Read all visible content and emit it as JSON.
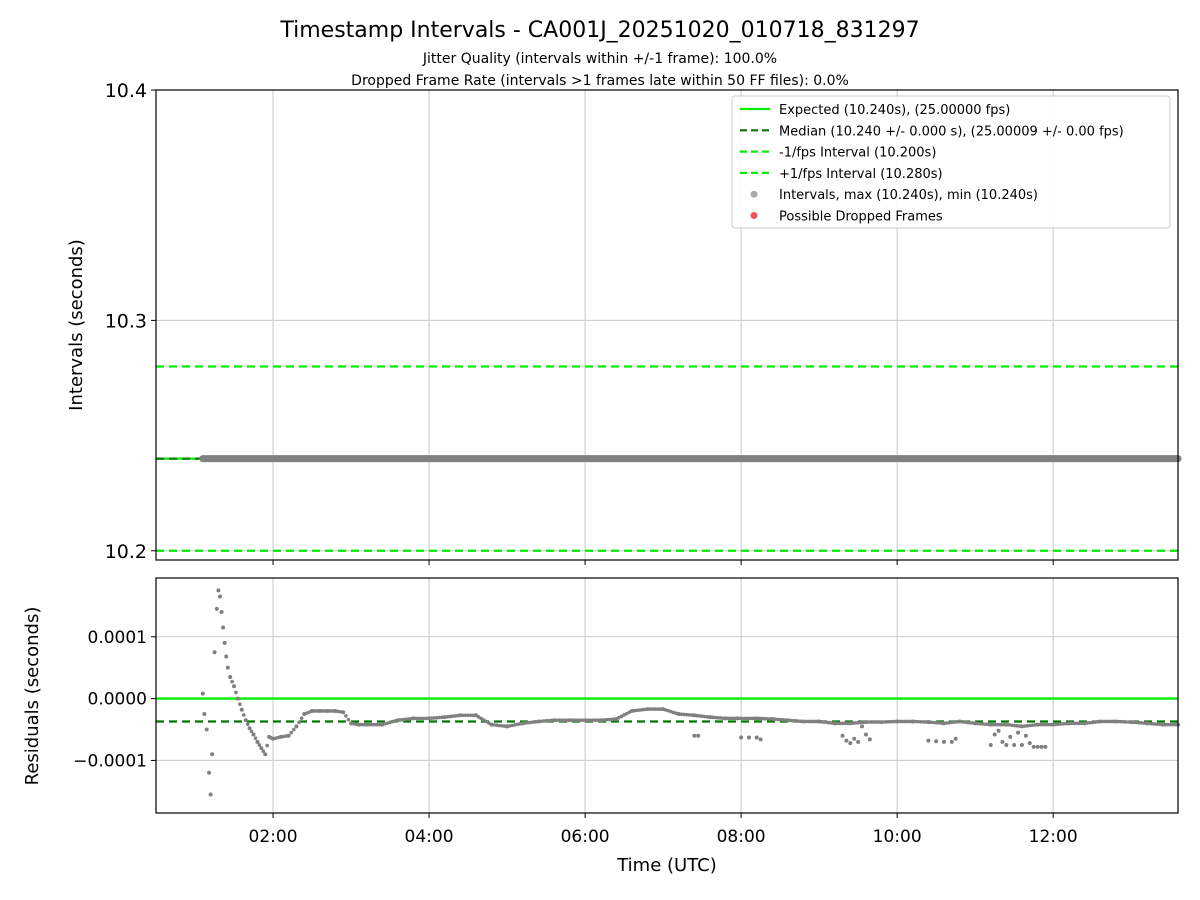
{
  "title": "Timestamp Intervals - CA001J_20251020_010718_831297",
  "subtitle_1": "Jitter Quality (intervals within +/-1 frame): 100.0%",
  "subtitle_2": "Dropped Frame Rate (intervals >1 frames late within 50 FF files): 0.0%",
  "colors": {
    "expected": "#00ee00",
    "median": "#007700",
    "fps_band": "#00ee00",
    "points": "#808080",
    "legend_points": "#aaaaaa",
    "dropped": "#ee5555",
    "grid": "#c8c8c8"
  },
  "chart_data": [
    {
      "type": "scatter",
      "name": "intervals",
      "xlabel": "",
      "ylabel": "Intervals (seconds)",
      "xlim_hours": [
        0.5,
        13.6
      ],
      "ylim": [
        10.196,
        10.4
      ],
      "yticks": [
        10.2,
        10.3,
        10.4
      ],
      "ytick_labels": [
        "10.2",
        "10.3",
        "10.4"
      ],
      "grid": true,
      "legend_position": "top-right",
      "reference_lines": {
        "expected": 10.24,
        "median": 10.24,
        "minus_1_fps": 10.2,
        "plus_1_fps": 10.28
      },
      "series": [
        {
          "name": "intervals",
          "x_start_hours": 1.1,
          "x_end_hours": 13.6,
          "value": 10.24
        }
      ],
      "legend": [
        {
          "label": "Expected (10.240s), (25.00000 fps)",
          "style": "solid-line",
          "color_key": "expected"
        },
        {
          "label": "Median (10.240 +/- 0.000 s), (25.00009 +/- 0.00 fps)",
          "style": "dashed-line",
          "color_key": "median"
        },
        {
          "label": "-1/fps Interval (10.200s)",
          "style": "dashed-line",
          "color_key": "fps_band"
        },
        {
          "label": "+1/fps Interval (10.280s)",
          "style": "dashed-line",
          "color_key": "fps_band"
        },
        {
          "label": "Intervals, max (10.240s), min (10.240s)",
          "style": "dot",
          "color_key": "legend_points"
        },
        {
          "label": "Possible Dropped Frames",
          "style": "dot",
          "color_key": "dropped"
        }
      ]
    },
    {
      "type": "scatter",
      "name": "residuals",
      "xlabel": "Time (UTC)",
      "ylabel": "Residuals (seconds)",
      "xlim_hours": [
        0.5,
        13.6
      ],
      "ylim": [
        -0.000185,
        0.000195
      ],
      "yticks": [
        -0.0001,
        0.0,
        0.0001
      ],
      "ytick_labels": [
        "−0.0001",
        "0.0000",
        "0.0001"
      ],
      "xticks_hours": [
        2,
        4,
        6,
        8,
        10,
        12
      ],
      "xtick_labels": [
        "02:00",
        "04:00",
        "06:00",
        "08:00",
        "10:00",
        "12:00"
      ],
      "grid": true,
      "reference_lines": {
        "expected": 0.0,
        "median": -3.7e-05
      },
      "series": [
        {
          "name": "residuals",
          "x_hours": [
            1.1,
            1.12,
            1.15,
            1.18,
            1.2,
            1.22,
            1.25,
            1.28,
            1.3,
            1.32,
            1.34,
            1.36,
            1.38,
            1.4,
            1.42,
            1.45,
            1.5,
            1.55,
            1.6,
            1.65,
            1.7,
            1.75,
            1.8,
            1.85,
            1.9,
            1.95,
            2.0,
            2.1,
            2.2,
            2.3,
            2.4,
            2.5,
            2.6,
            2.7,
            2.8,
            2.9,
            3.0,
            3.1,
            3.2,
            3.4,
            3.6,
            3.8,
            4.0,
            4.2,
            4.4,
            4.6,
            4.8,
            5.0,
            5.2,
            5.4,
            5.6,
            5.8,
            6.0,
            6.2,
            6.4,
            6.6,
            6.8,
            7.0,
            7.2,
            7.4,
            7.6,
            7.8,
            7.95,
            8.2,
            8.4,
            8.6,
            8.8,
            9.0,
            9.2,
            9.4,
            9.6,
            9.8,
            10.0,
            10.2,
            10.4,
            10.6,
            10.8,
            11.0,
            11.2,
            11.4,
            11.6,
            11.8,
            12.0,
            12.2,
            12.4,
            12.6,
            12.8,
            13.0,
            13.2,
            13.4,
            13.6
          ],
          "values": [
            8e-06,
            -2.5e-05,
            -5e-05,
            -0.00012,
            -0.000155,
            -9e-05,
            7.5e-05,
            0.000145,
            0.000175,
            0.000165,
            0.00014,
            0.000115,
            9e-05,
            6.8e-05,
            5e-05,
            3.5e-05,
            2e-05,
            0.0,
            -1.8e-05,
            -3.5e-05,
            -4.8e-05,
            -5.8e-05,
            -7e-05,
            -8e-05,
            -9e-05,
            -6.2e-05,
            -6.5e-05,
            -6.2e-05,
            -6e-05,
            -4.5e-05,
            -2.5e-05,
            -2e-05,
            -2e-05,
            -2e-05,
            -2e-05,
            -2.2e-05,
            -4e-05,
            -4.2e-05,
            -4.2e-05,
            -4.2e-05,
            -3.5e-05,
            -3.2e-05,
            -3.2e-05,
            -3e-05,
            -2.7e-05,
            -2.7e-05,
            -4.2e-05,
            -4.5e-05,
            -4e-05,
            -3.7e-05,
            -3.5e-05,
            -3.5e-05,
            -3.5e-05,
            -3.5e-05,
            -3.3e-05,
            -2e-05,
            -1.7e-05,
            -1.7e-05,
            -2.5e-05,
            -2.7e-05,
            -3e-05,
            -3.2e-05,
            -3.2e-05,
            -3.2e-05,
            -3.3e-05,
            -3.5e-05,
            -3.7e-05,
            -3.7e-05,
            -4e-05,
            -4e-05,
            -3.8e-05,
            -3.8e-05,
            -3.7e-05,
            -3.7e-05,
            -3.8e-05,
            -4e-05,
            -3.7e-05,
            -4e-05,
            -4.2e-05,
            -4.2e-05,
            -4.5e-05,
            -4.2e-05,
            -4.2e-05,
            -4e-05,
            -4e-05,
            -3.7e-05,
            -3.7e-05,
            -3.8e-05,
            -4e-05,
            -4.2e-05,
            -4.2e-05
          ]
        },
        {
          "name": "outliers",
          "x_hours": [
            7.4,
            7.45,
            8.0,
            8.1,
            8.2,
            8.25,
            9.3,
            9.35,
            9.4,
            9.45,
            9.5,
            9.55,
            9.6,
            9.65,
            10.4,
            10.5,
            10.6,
            10.7,
            10.75,
            11.2,
            11.25,
            11.3,
            11.35,
            11.4,
            11.45,
            11.5,
            11.55,
            11.6,
            11.65,
            11.7,
            11.75,
            11.8,
            11.85,
            11.9
          ],
          "values": [
            -6e-05,
            -6e-05,
            -6.3e-05,
            -6.3e-05,
            -6.3e-05,
            -6.6e-05,
            -6e-05,
            -6.8e-05,
            -7.2e-05,
            -6.5e-05,
            -7e-05,
            -4.5e-05,
            -5.8e-05,
            -6.6e-05,
            -6.8e-05,
            -6.9e-05,
            -7e-05,
            -7e-05,
            -6.5e-05,
            -7.5e-05,
            -5.8e-05,
            -5.2e-05,
            -7e-05,
            -7.5e-05,
            -6.2e-05,
            -7.5e-05,
            -5.5e-05,
            -7.5e-05,
            -6e-05,
            -7.2e-05,
            -7.8e-05,
            -7.8e-05,
            -7.8e-05,
            -7.8e-05
          ]
        }
      ]
    }
  ]
}
